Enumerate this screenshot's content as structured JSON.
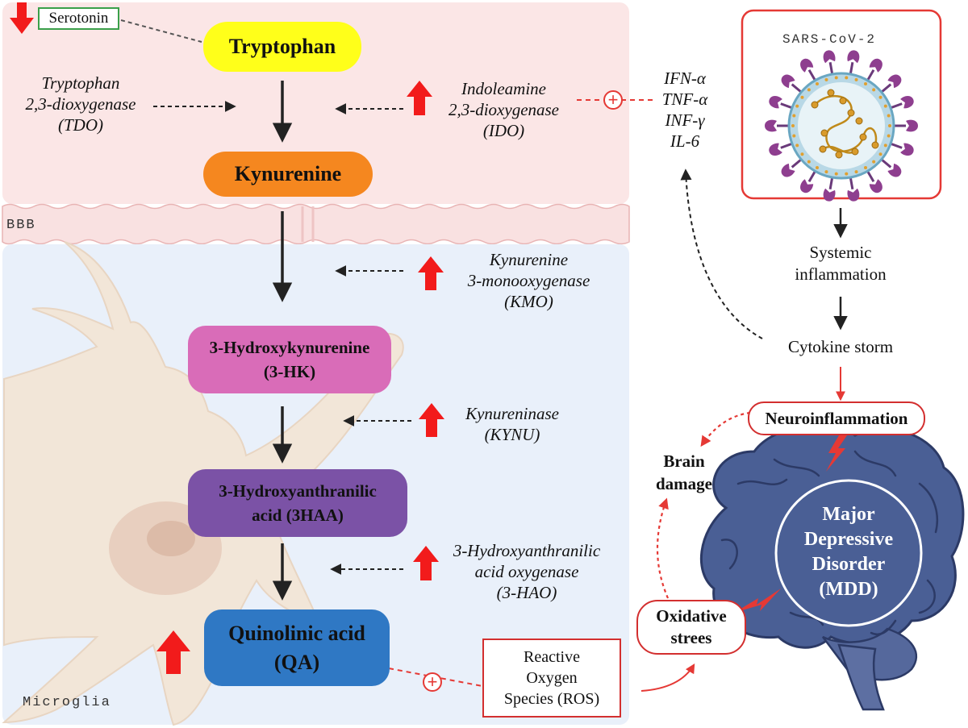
{
  "labels": {
    "serotonin": "Serotonin",
    "bbb": "BBB",
    "microglia": "Microglia",
    "sars": "SARS-CoV-2"
  },
  "metabolites": {
    "tryptophan": "Tryptophan",
    "kynurenine": "Kynurenine",
    "hk_line1": "3-Hydroxykynurenine",
    "hk_line2": "(3-HK)",
    "haa_line1": "3-Hydroxyanthranilic",
    "haa_line2": "acid (3HAA)",
    "qa_line1": "Quinolinic acid",
    "qa_line2": "(QA)"
  },
  "enzymes": {
    "tdo": [
      "Tryptophan",
      "2,3-dioxygenase",
      "(TDO)"
    ],
    "ido": [
      "Indoleamine",
      "2,3-dioxygenase",
      "(IDO)"
    ],
    "kmo": [
      "Kynurenine",
      "3-monooxygenase",
      "(KMO)"
    ],
    "kynu": [
      "Kynureninase",
      "(KYNU)"
    ],
    "hao": [
      "3-Hydroxyanthranilic",
      "acid oxygenase",
      "(3-HAO)"
    ]
  },
  "cytokines": [
    "IFN-α",
    "TNF-α",
    "INF-γ",
    "IL-6"
  ],
  "ros": [
    "Reactive",
    "Oxygen",
    "Species (ROS)"
  ],
  "right_flow": {
    "systemic": [
      "Systemic",
      "inflammation"
    ],
    "cytokine_storm": "Cytokine storm",
    "neuroinflammation": "Neuroinflammation",
    "brain_damage": [
      "Brain",
      "damage"
    ],
    "oxidative": [
      "Oxidative",
      "strees"
    ],
    "mdd": [
      "Major",
      "Depressive",
      "Disorder",
      "(MDD)"
    ]
  },
  "plus_sign": "+",
  "colors": {
    "top_zone": "#fbe6e6",
    "bottom_zone": "#e9f0fa",
    "tryptophan": "#ffff1a",
    "kynurenine": "#f5871f",
    "hk": "#d96cb8",
    "haa": "#7b52a6",
    "qa": "#2f78c4",
    "up_arrow": "#f21b1b",
    "red_line": "#e53935",
    "brain": "#4a5f95",
    "cell": "#f2e6d8"
  }
}
